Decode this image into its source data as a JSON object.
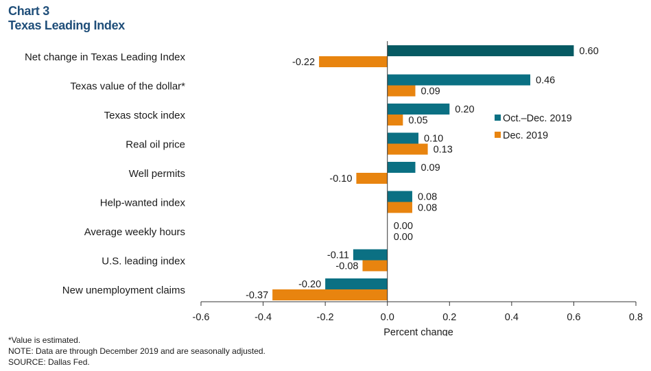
{
  "header": {
    "chart_number": "Chart 3",
    "title": "Texas Leading Index"
  },
  "notes": {
    "line1": "*Value is estimated.",
    "line2": "NOTE: Data are through December 2019 and are seasonally adjusted.",
    "line3": "SOURCE: Dallas Fed."
  },
  "colors": {
    "series1": "#0b7083",
    "series1_first": "#065a63",
    "series2": "#e8840f"
  },
  "chart_data": {
    "type": "bar",
    "orientation": "horizontal",
    "title": "Texas Leading Index",
    "categories": [
      "Net change in Texas Leading Index",
      "Texas value of the dollar*",
      "Texas stock index",
      "Real oil price",
      "Well permits",
      "Help-wanted index",
      "Average weekly hours",
      "U.S. leading index",
      "New unemployment claims"
    ],
    "series": [
      {
        "name": "Oct.–Dec. 2019",
        "values": [
          0.6,
          0.46,
          0.2,
          0.1,
          0.09,
          0.08,
          0.0,
          -0.11,
          -0.2
        ],
        "labels": [
          "0.60",
          "0.46",
          "0.20",
          "0.10",
          "0.09",
          "0.08",
          "0.00",
          "-0.11",
          "-0.20"
        ]
      },
      {
        "name": "Dec. 2019",
        "values": [
          -0.22,
          0.09,
          0.05,
          0.13,
          -0.1,
          0.08,
          0.0,
          -0.08,
          -0.37
        ],
        "labels": [
          "-0.22",
          "0.09",
          "0.05",
          "0.13",
          "-0.10",
          "0.08",
          "0.00",
          "-0.08",
          "-0.37"
        ]
      }
    ],
    "xlabel": "Percent change",
    "ylabel": "",
    "xlim": [
      -0.6,
      0.8
    ],
    "xticks": [
      -0.6,
      -0.4,
      -0.2,
      0.0,
      0.2,
      0.4,
      0.6,
      0.8
    ],
    "xtick_labels": [
      "-0.6",
      "-0.4",
      "-0.2",
      "0.0",
      "0.2",
      "0.4",
      "0.6",
      "0.8"
    ],
    "legend_position": "right, middle",
    "grid": false
  }
}
